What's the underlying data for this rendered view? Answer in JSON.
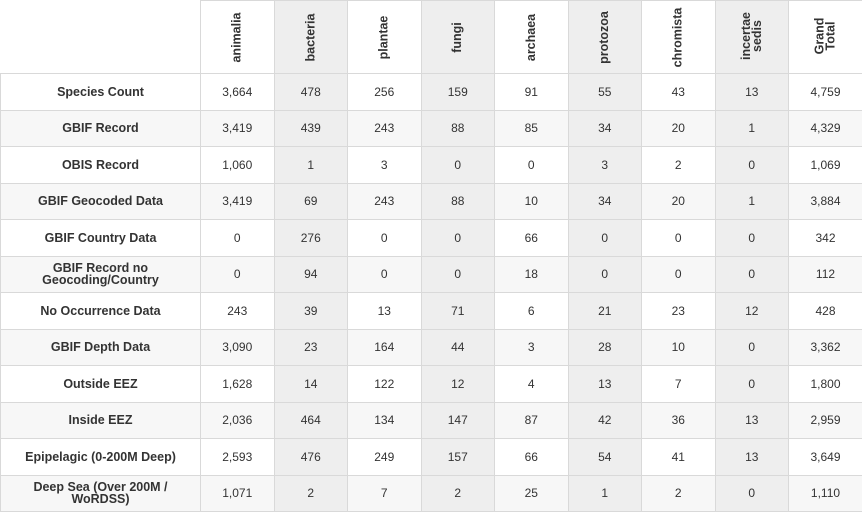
{
  "columns": [
    "animalia",
    "bacteria",
    "plantae",
    "fungi",
    "archaea",
    "protozoa",
    "chromista",
    "incertae\nsedis",
    "Grand\nTotal"
  ],
  "rows": [
    {
      "label": "Species Count",
      "values": [
        "3,664",
        "478",
        "256",
        "159",
        "91",
        "55",
        "43",
        "13",
        "4,759"
      ]
    },
    {
      "label": "GBIF Record",
      "values": [
        "3,419",
        "439",
        "243",
        "88",
        "85",
        "34",
        "20",
        "1",
        "4,329"
      ]
    },
    {
      "label": "OBIS Record",
      "values": [
        "1,060",
        "1",
        "3",
        "0",
        "0",
        "3",
        "2",
        "0",
        "1,069"
      ]
    },
    {
      "label": "GBIF Geocoded Data",
      "values": [
        "3,419",
        "69",
        "243",
        "88",
        "10",
        "34",
        "20",
        "1",
        "3,884"
      ]
    },
    {
      "label": "GBIF Country Data",
      "values": [
        "0",
        "276",
        "0",
        "0",
        "66",
        "0",
        "0",
        "0",
        "342"
      ]
    },
    {
      "label": "GBIF Record no\nGeocoding/Country",
      "values": [
        "0",
        "94",
        "0",
        "0",
        "18",
        "0",
        "0",
        "0",
        "112"
      ]
    },
    {
      "label": "No Occurrence Data",
      "values": [
        "243",
        "39",
        "13",
        "71",
        "6",
        "21",
        "23",
        "12",
        "428"
      ]
    },
    {
      "label": "GBIF Depth Data",
      "values": [
        "3,090",
        "23",
        "164",
        "44",
        "3",
        "28",
        "10",
        "0",
        "3,362"
      ]
    },
    {
      "label": "Outside EEZ",
      "values": [
        "1,628",
        "14",
        "122",
        "12",
        "4",
        "13",
        "7",
        "0",
        "1,800"
      ]
    },
    {
      "label": "Inside EEZ",
      "values": [
        "2,036",
        "464",
        "134",
        "147",
        "87",
        "42",
        "36",
        "13",
        "2,959"
      ]
    },
    {
      "label": "Epipelagic (0-200M Deep)",
      "values": [
        "2,593",
        "476",
        "249",
        "157",
        "66",
        "54",
        "41",
        "13",
        "3,649"
      ]
    },
    {
      "label": "Deep Sea (Over 200M /\nWoRDSS)",
      "values": [
        "1,071",
        "2",
        "7",
        "2",
        "25",
        "1",
        "2",
        "0",
        "1,110"
      ]
    }
  ],
  "colors": {
    "border": "#d9d9d9",
    "shaded_column": "#eeeeee",
    "alternate_row": "#f7f7f7",
    "text": "#333333"
  }
}
